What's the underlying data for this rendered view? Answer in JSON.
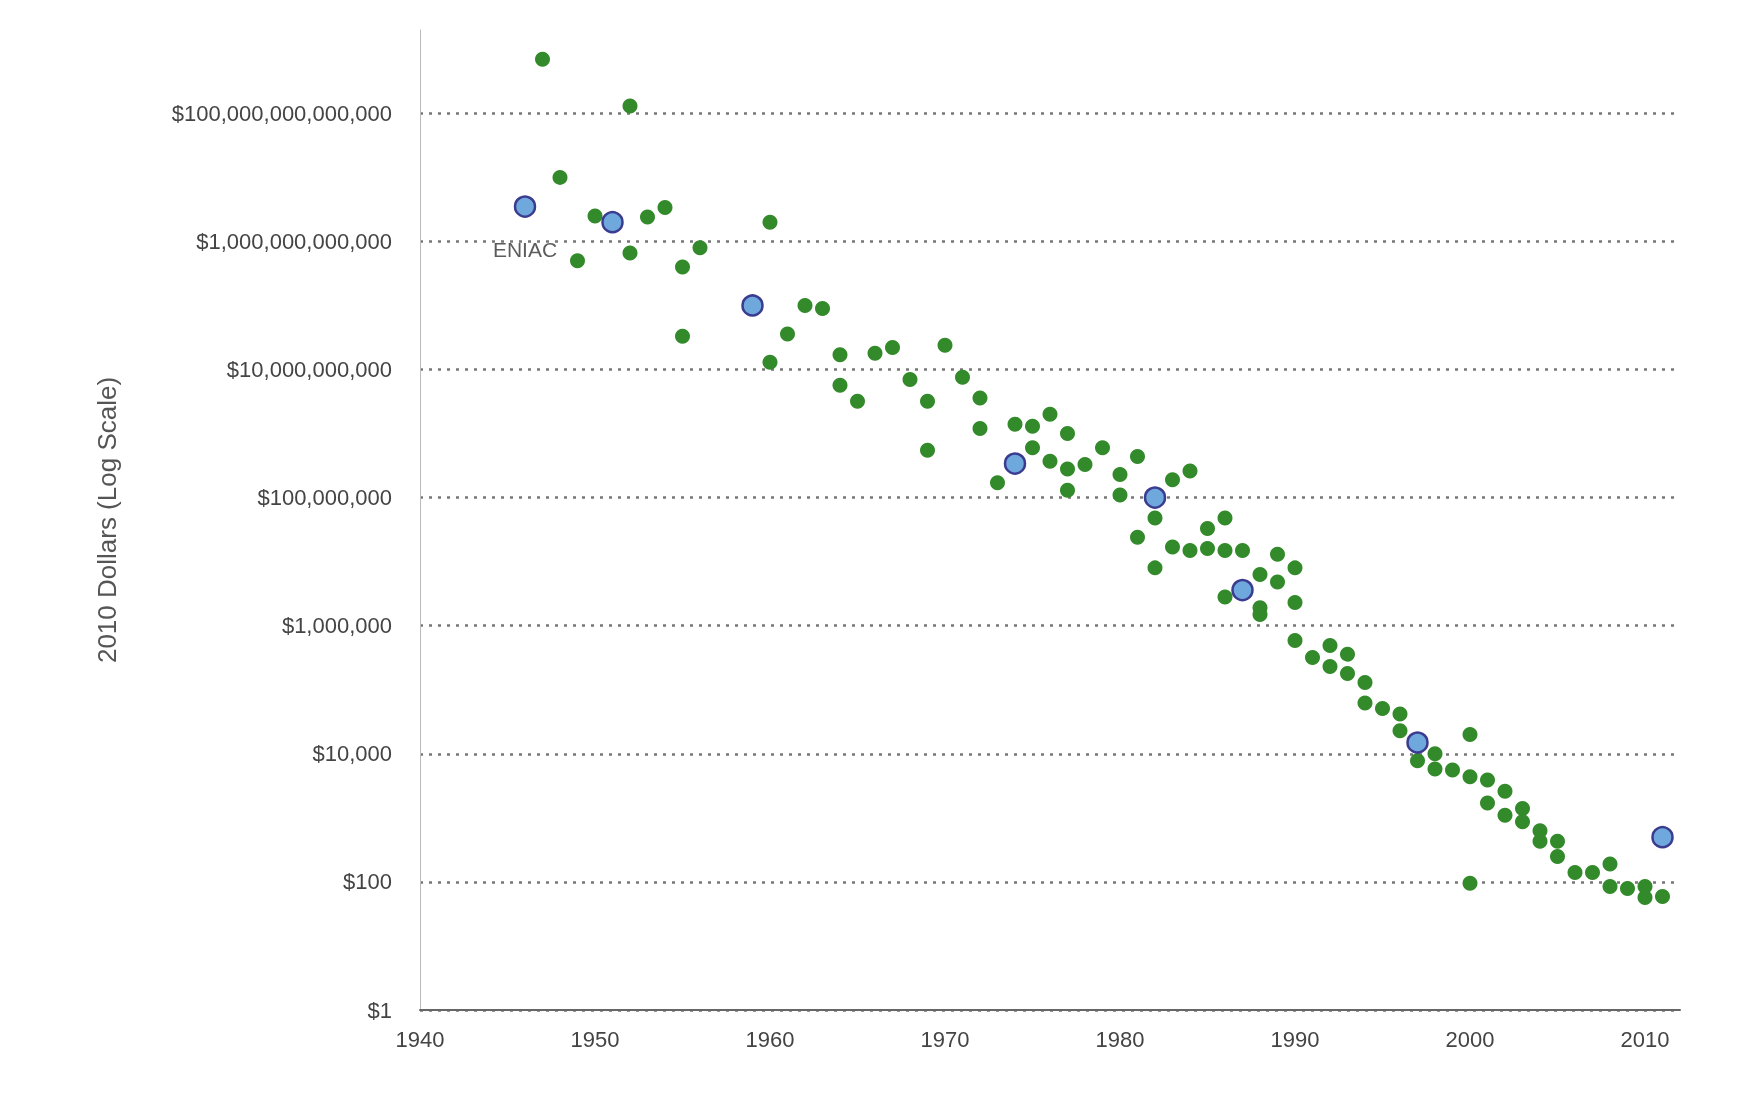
{
  "chart_data": {
    "type": "scatter",
    "ylabel": "2010 Dollars (Log Scale)",
    "log": "y",
    "grid": "y",
    "marker": "circle",
    "xlim": [
      1940,
      2012
    ],
    "xticks": [
      1940,
      1950,
      1960,
      1970,
      1980,
      1990,
      2000,
      2010
    ],
    "ylim": [
      1,
      2000000000000000.0
    ],
    "yticks": [
      {
        "value": 1,
        "label": "$1"
      },
      {
        "value": 100,
        "label": "$100"
      },
      {
        "value": 10000,
        "label": "$10,000"
      },
      {
        "value": 1000000,
        "label": "$1,000,000"
      },
      {
        "value": 100000000,
        "label": "$100,000,000"
      },
      {
        "value": 10000000000,
        "label": "$10,000,000,000"
      },
      {
        "value": 1000000000000,
        "label": "$1,000,000,000,000"
      },
      {
        "value": 100000000000000,
        "label": "$100,000,000,000,000"
      }
    ],
    "annotations": [
      {
        "text": "ENIAC",
        "x": 1946,
        "y": 3500000000000.0
      }
    ],
    "series": [
      {
        "color": "#338a2a",
        "x": [
          1947,
          1952,
          1948,
          1950,
          1953,
          1954,
          1949,
          1952,
          1955,
          1956,
          1960,
          1955,
          1961,
          1960,
          1962,
          1963,
          1964,
          1964,
          1965,
          1966,
          1967,
          1968,
          1969,
          1969,
          1970,
          1971,
          1972,
          1972,
          1973,
          1974,
          1975,
          1975,
          1976,
          1976,
          1977,
          1977,
          1977,
          1978,
          1979,
          1980,
          1980,
          1981,
          1981,
          1982,
          1982,
          1983,
          1984,
          1983,
          1984,
          1985,
          1985,
          1986,
          1986,
          1987,
          1986,
          1988,
          1988,
          1988,
          1989,
          1989,
          1990,
          1990,
          1990,
          1991,
          1992,
          1992,
          1993,
          1993,
          1994,
          1994,
          1995,
          1996,
          1996,
          1997,
          1998,
          1998,
          1999,
          2000,
          2000,
          2000,
          2001,
          2001,
          2002,
          2002,
          2003,
          2003,
          2004,
          2004,
          2005,
          2005,
          2006,
          2007,
          2008,
          2008,
          2009,
          2010,
          2010,
          2011
        ],
        "values": [
          700000000000000.0,
          130000000000000.0,
          10000000000000.0,
          2500000000000.0,
          2400000000000.0,
          3400000000000.0,
          500000000000.0,
          660000000000.0,
          400000000000.0,
          800000000000.0,
          2000000000000.0,
          33000000000.0,
          36000000000.0,
          13000000000.0,
          100000000000.0,
          90000000000.0,
          17000000000.0,
          5700000000.0,
          3200000000.0,
          18000000000.0,
          22000000000.0,
          7000000000.0,
          3200000000.0,
          550000000.0,
          24000000000.0,
          7600000000.0,
          3600000000.0,
          1200000000.0,
          170000000.0,
          1400000000.0,
          1300000000.0,
          600000000.0,
          2000000000.0,
          370000000.0,
          1000000000.0,
          280000000.0,
          130000000.0,
          330000000.0,
          600000000.0,
          230000000.0,
          110000000.0,
          440000000.0,
          24000000.0,
          8000000.0,
          48000000.0,
          190000000.0,
          260000000.0,
          17000000.0,
          15000000.0,
          33000000.0,
          16000000.0,
          48000000.0,
          15000000.0,
          15000000.0,
          2800000.0,
          6300000.0,
          1900000.0,
          1500000.0,
          13000000.0,
          4800000.0,
          8000000.0,
          2300000.0,
          590000.0,
          320000.0,
          490000.0,
          230000.0,
          360000.0,
          180000.0,
          130000.0,
          62000.0,
          51000.0,
          42000.0,
          23000.0,
          7800,
          10000.0,
          5800,
          5600,
          20000.0,
          4400,
          95,
          3900,
          1700,
          2600,
          1100,
          1400,
          870,
          630,
          430,
          430,
          250,
          140,
          140,
          190,
          85,
          79,
          85,
          57,
          59
        ]
      },
      {
        "color": "#6fa8dc",
        "x": [
          1946,
          1951,
          1959,
          1974,
          1982,
          1987,
          1997,
          2011
        ],
        "values": [
          3500000000000.0,
          2000000000000.0,
          100000000000.0,
          340000000.0,
          100000000.0,
          3600000.0,
          15000.0,
          500
        ]
      }
    ]
  }
}
